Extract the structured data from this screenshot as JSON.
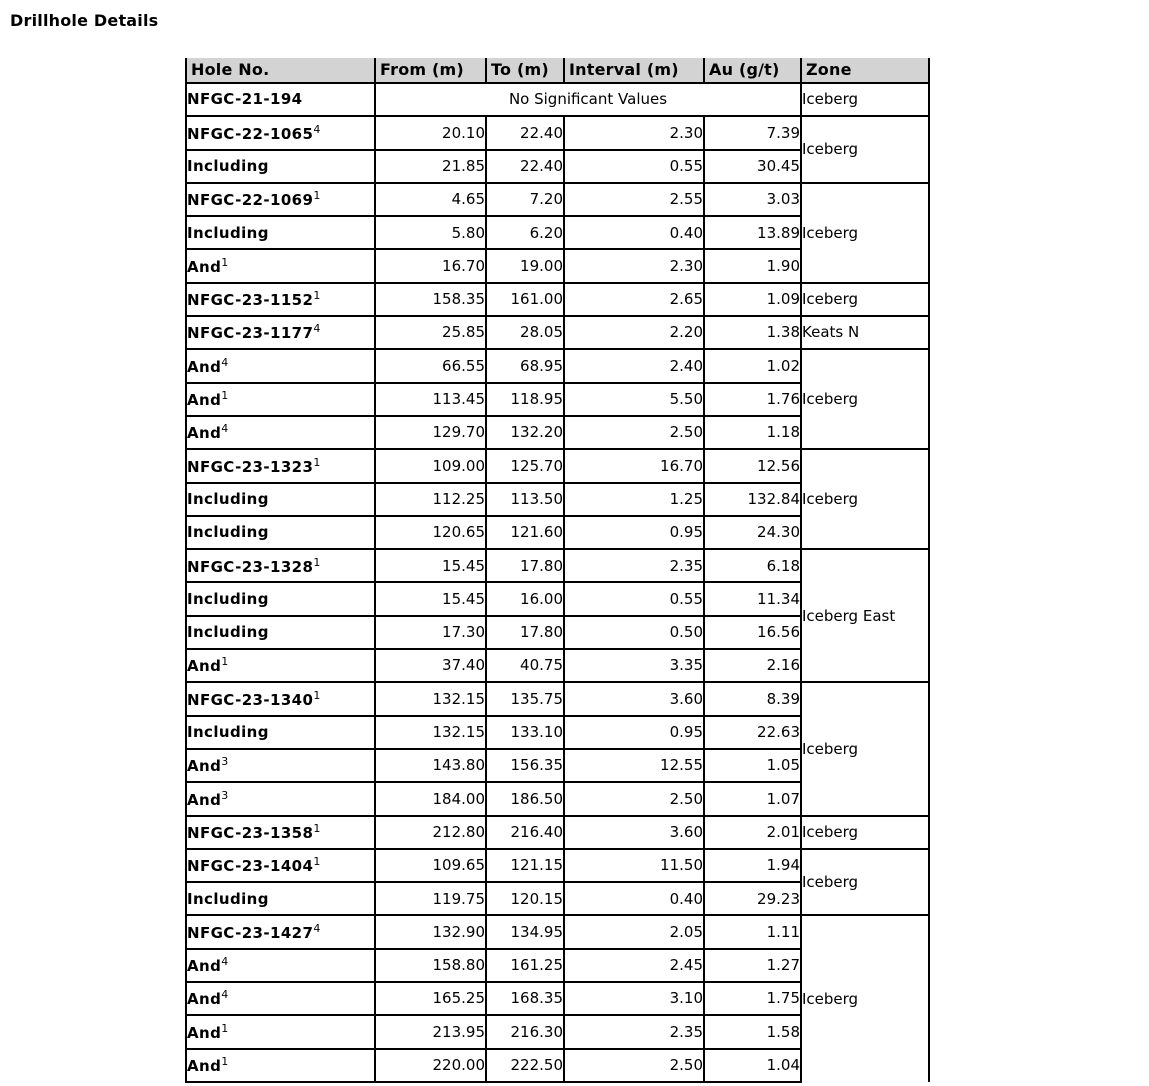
{
  "title": "Drillhole Details",
  "colors": {
    "header_bg": "#d3d3d3",
    "border": "#000000",
    "text": "#000000"
  },
  "table": {
    "headers": [
      "Hole No.",
      "From (m)",
      "To (m)",
      "Interval (m)",
      "Au (g/t)",
      "Zone"
    ],
    "no_significant_text": "No Significant Values",
    "rows": [
      {
        "hole": "NFGC-21-194",
        "nosig": true,
        "zone": "Iceberg",
        "zone_span": 1
      },
      {
        "hole": "NFGC-22-1065",
        "sup": "4",
        "from": "20.10",
        "to": "22.40",
        "interval": "2.30",
        "au": "7.39",
        "zone": "Iceberg",
        "zone_span": 2
      },
      {
        "hole": "Including",
        "from": "21.85",
        "to": "22.40",
        "interval": "0.55",
        "au": "30.45"
      },
      {
        "hole": "NFGC-22-1069",
        "sup": "1",
        "from": "4.65",
        "to": "7.20",
        "interval": "2.55",
        "au": "3.03",
        "zone": "Iceberg",
        "zone_span": 3
      },
      {
        "hole": "Including",
        "from": "5.80",
        "to": "6.20",
        "interval": "0.40",
        "au": "13.89"
      },
      {
        "hole": "And",
        "sup": "1",
        "from": "16.70",
        "to": "19.00",
        "interval": "2.30",
        "au": "1.90"
      },
      {
        "hole": "NFGC-23-1152",
        "sup": "1",
        "from": "158.35",
        "to": "161.00",
        "interval": "2.65",
        "au": "1.09",
        "zone": "Iceberg",
        "zone_span": 1
      },
      {
        "hole": "NFGC-23-1177",
        "sup": "4",
        "from": "25.85",
        "to": "28.05",
        "interval": "2.20",
        "au": "1.38",
        "zone": "Keats N",
        "zone_span": 1
      },
      {
        "hole": "And",
        "sup": "4",
        "from": "66.55",
        "to": "68.95",
        "interval": "2.40",
        "au": "1.02",
        "zone": "Iceberg",
        "zone_span": 3
      },
      {
        "hole": "And",
        "sup": "1",
        "from": "113.45",
        "to": "118.95",
        "interval": "5.50",
        "au": "1.76"
      },
      {
        "hole": "And",
        "sup": "4",
        "from": "129.70",
        "to": "132.20",
        "interval": "2.50",
        "au": "1.18"
      },
      {
        "hole": "NFGC-23-1323",
        "sup": "1",
        "from": "109.00",
        "to": "125.70",
        "interval": "16.70",
        "au": "12.56",
        "zone": "Iceberg",
        "zone_span": 3
      },
      {
        "hole": "Including",
        "from": "112.25",
        "to": "113.50",
        "interval": "1.25",
        "au": "132.84"
      },
      {
        "hole": "Including",
        "from": "120.65",
        "to": "121.60",
        "interval": "0.95",
        "au": "24.30"
      },
      {
        "hole": "NFGC-23-1328",
        "sup": "1",
        "from": "15.45",
        "to": "17.80",
        "interval": "2.35",
        "au": "6.18",
        "zone": "Iceberg East",
        "zone_span": 4
      },
      {
        "hole": "Including",
        "from": "15.45",
        "to": "16.00",
        "interval": "0.55",
        "au": "11.34"
      },
      {
        "hole": "Including",
        "from": "17.30",
        "to": "17.80",
        "interval": "0.50",
        "au": "16.56"
      },
      {
        "hole": "And",
        "sup": "1",
        "from": "37.40",
        "to": "40.75",
        "interval": "3.35",
        "au": "2.16"
      },
      {
        "hole": "NFGC-23-1340",
        "sup": "1",
        "from": "132.15",
        "to": "135.75",
        "interval": "3.60",
        "au": "8.39",
        "zone": "Iceberg",
        "zone_span": 4
      },
      {
        "hole": "Including",
        "from": "132.15",
        "to": "133.10",
        "interval": "0.95",
        "au": "22.63"
      },
      {
        "hole": "And",
        "sup": "3",
        "from": "143.80",
        "to": "156.35",
        "interval": "12.55",
        "au": "1.05"
      },
      {
        "hole": "And",
        "sup": "3",
        "from": "184.00",
        "to": "186.50",
        "interval": "2.50",
        "au": "1.07"
      },
      {
        "hole": "NFGC-23-1358",
        "sup": "1",
        "from": "212.80",
        "to": "216.40",
        "interval": "3.60",
        "au": "2.01",
        "zone": "Iceberg",
        "zone_span": 1
      },
      {
        "hole": "NFGC-23-1404",
        "sup": "1",
        "from": "109.65",
        "to": "121.15",
        "interval": "11.50",
        "au": "1.94",
        "zone": "Iceberg",
        "zone_span": 2
      },
      {
        "hole": "Including",
        "from": "119.75",
        "to": "120.15",
        "interval": "0.40",
        "au": "29.23"
      },
      {
        "hole": "NFGC-23-1427",
        "sup": "4",
        "from": "132.90",
        "to": "134.95",
        "interval": "2.05",
        "au": "1.11",
        "zone": "Iceberg",
        "zone_span": 5
      },
      {
        "hole": "And",
        "sup": "4",
        "from": "158.80",
        "to": "161.25",
        "interval": "2.45",
        "au": "1.27"
      },
      {
        "hole": "And",
        "sup": "4",
        "from": "165.25",
        "to": "168.35",
        "interval": "3.10",
        "au": "1.75"
      },
      {
        "hole": "And",
        "sup": "1",
        "from": "213.95",
        "to": "216.30",
        "interval": "2.35",
        "au": "1.58"
      },
      {
        "hole": "And",
        "sup": "1",
        "from": "220.00",
        "to": "222.50",
        "interval": "2.50",
        "au": "1.04"
      }
    ]
  }
}
